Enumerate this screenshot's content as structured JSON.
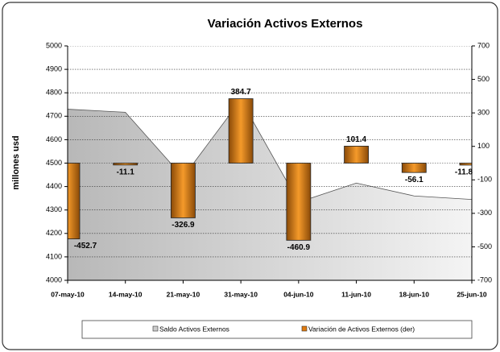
{
  "chart_data": {
    "type": "bar_area",
    "title": "Variación Activos Externos",
    "y_label": "millones usd",
    "categories": [
      "07-may-10",
      "14-may-10",
      "21-may-10",
      "31-may-10",
      "04-jun-10",
      "11-jun-10",
      "18-jun-10",
      "25-jun-10"
    ],
    "series": [
      {
        "name": "Saldo Activos Externos",
        "type": "area",
        "color": "#c8c8c8",
        "values": [
          4730,
          4717,
          4440,
          4770,
          4333,
          4415,
          4360,
          4345
        ]
      },
      {
        "name": "Variación de Activos Externos (der)",
        "type": "bar",
        "axis": "y2",
        "color": "#e07b10",
        "values": [
          -452.7,
          -11.1,
          -326.9,
          384.7,
          -460.9,
          101.4,
          -56.1,
          -11.8
        ]
      }
    ],
    "ylim": [
      4000,
      5000
    ],
    "yticks": [
      4000,
      4100,
      4200,
      4300,
      4400,
      4500,
      4600,
      4700,
      4800,
      4900,
      5000
    ],
    "y2lim": [
      -700,
      700
    ],
    "y2ticks": [
      -700,
      -500,
      -300,
      -100,
      100,
      300,
      500,
      700
    ],
    "grid": true,
    "legend": "bottom"
  }
}
